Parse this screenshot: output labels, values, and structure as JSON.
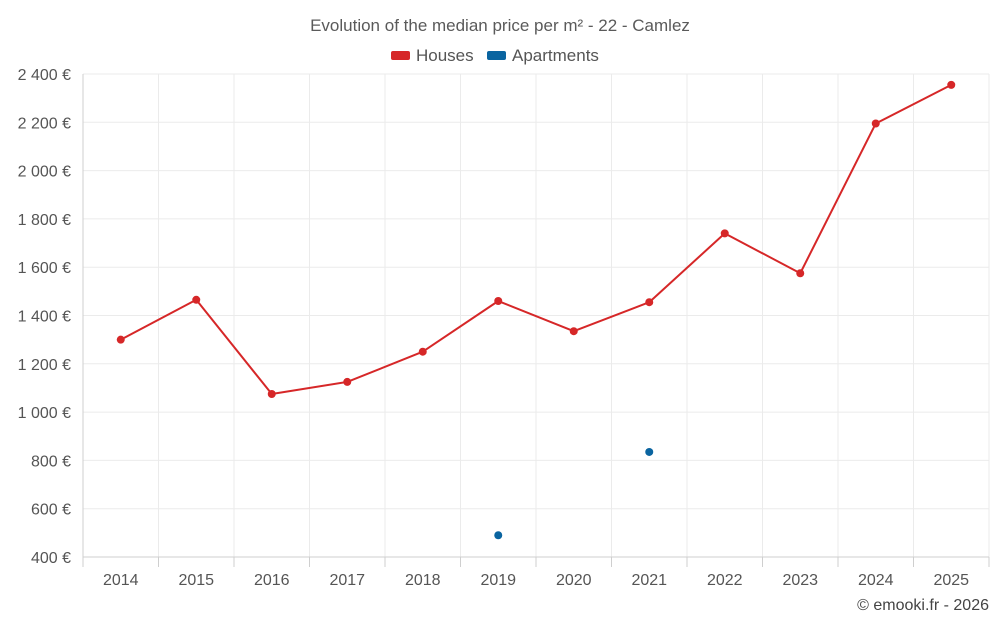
{
  "chart_data": {
    "type": "line",
    "title": "Evolution of the median price per m² - 22 - Camlez",
    "categories": [
      "2014",
      "2015",
      "2016",
      "2017",
      "2018",
      "2019",
      "2020",
      "2021",
      "2022",
      "2023",
      "2024",
      "2025"
    ],
    "series": [
      {
        "name": "Houses",
        "color": "#d62728",
        "values": [
          1300,
          1465,
          1075,
          1125,
          1250,
          1460,
          1335,
          1455,
          1740,
          1575,
          2195,
          2355
        ]
      },
      {
        "name": "Apartments",
        "color": "#0a64a0",
        "values": [
          null,
          null,
          null,
          null,
          null,
          490,
          null,
          835,
          null,
          null,
          null,
          null
        ]
      }
    ],
    "y_ticks": [
      "400 €",
      "600 €",
      "800 €",
      "1 000 €",
      "1 200 €",
      "1 400 €",
      "1 600 €",
      "1 800 €",
      "2 000 €",
      "2 200 €",
      "2 400 €"
    ],
    "ylim": [
      400,
      2400
    ],
    "y_step": 200,
    "xlabel": "",
    "ylabel": "",
    "legend_position": "top-center",
    "grid": true
  },
  "credit": "© emooki.fr - 2026"
}
